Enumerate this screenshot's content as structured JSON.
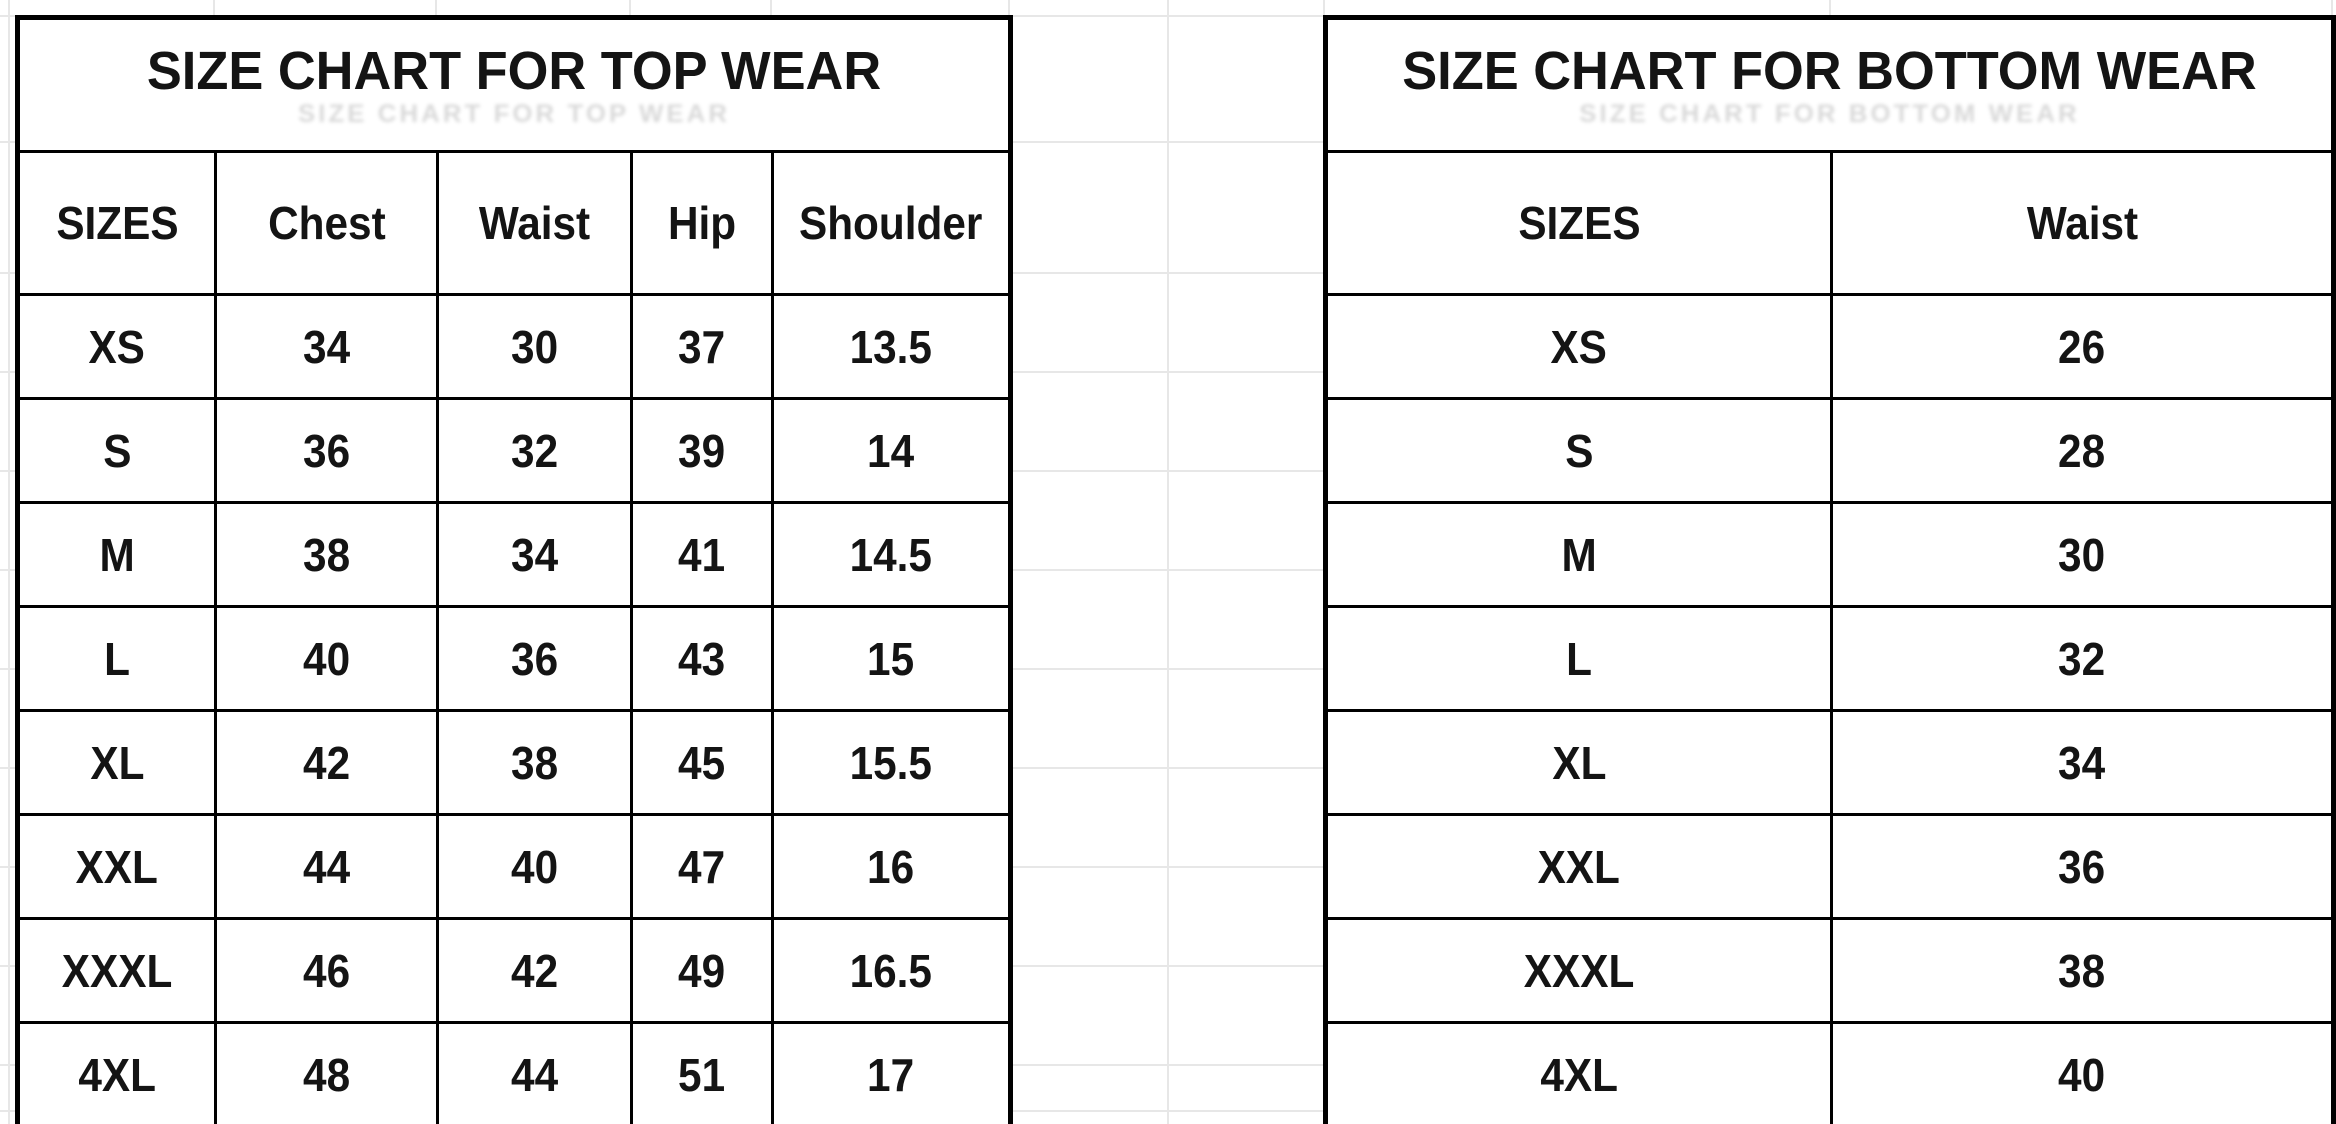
{
  "colors": {
    "background": "#ffffff",
    "table_border": "#000000",
    "text": "#141414",
    "sheet_gridline": "#e7e7e7"
  },
  "chart_data": [
    {
      "type": "table",
      "title": "SIZE CHART FOR TOP WEAR",
      "columns": [
        "SIZES",
        "Chest",
        "Waist",
        "Hip",
        "Shoulder"
      ],
      "rows": [
        [
          "XS",
          "34",
          "30",
          "37",
          "13.5"
        ],
        [
          "S",
          "36",
          "32",
          "39",
          "14"
        ],
        [
          "M",
          "38",
          "34",
          "41",
          "14.5"
        ],
        [
          "L",
          "40",
          "36",
          "43",
          "15"
        ],
        [
          "XL",
          "42",
          "38",
          "45",
          "15.5"
        ],
        [
          "XXL",
          "44",
          "40",
          "47",
          "16"
        ],
        [
          "XXXL",
          "46",
          "42",
          "49",
          "16.5"
        ],
        [
          "4XL",
          "48",
          "44",
          "51",
          "17"
        ]
      ]
    },
    {
      "type": "table",
      "title": "SIZE CHART FOR BOTTOM WEAR",
      "columns": [
        "SIZES",
        "Waist"
      ],
      "rows": [
        [
          "XS",
          "26"
        ],
        [
          "S",
          "28"
        ],
        [
          "M",
          "30"
        ],
        [
          "L",
          "32"
        ],
        [
          "XL",
          "34"
        ],
        [
          "XXL",
          "36"
        ],
        [
          "XXXL",
          "38"
        ],
        [
          "4XL",
          "40"
        ]
      ]
    }
  ]
}
